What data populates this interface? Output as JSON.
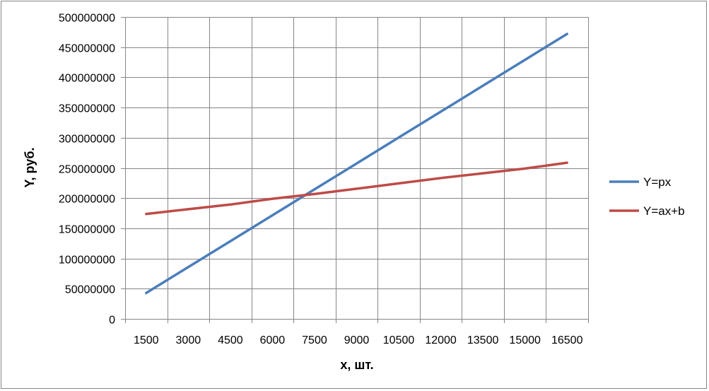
{
  "chart_data": {
    "type": "line",
    "title": "",
    "xlabel": "х, шт.",
    "ylabel": "Y, руб.",
    "categories": [
      1500,
      3000,
      4500,
      6000,
      7500,
      9000,
      10500,
      12000,
      13500,
      15000,
      16500
    ],
    "ylim": [
      0,
      500000000
    ],
    "y_ticks": [
      0,
      50000000,
      100000000,
      150000000,
      200000000,
      250000000,
      300000000,
      350000000,
      400000000,
      450000000,
      500000000
    ],
    "grid": true,
    "legend_position": "right",
    "series": [
      {
        "name": "Y=px",
        "color": "#4A7EBB",
        "values": [
          42900000,
          85800000,
          128700000,
          171600000,
          214500000,
          257400000,
          300300000,
          343200000,
          386100000,
          429000000,
          471900000
        ]
      },
      {
        "name": "Y=ax+b",
        "color": "#BE4B48",
        "values": [
          173800000,
          181600000,
          189400000,
          199000000,
          206800000,
          215600000,
          224400000,
          233300000,
          241100000,
          249000000,
          258700000
        ]
      }
    ]
  }
}
